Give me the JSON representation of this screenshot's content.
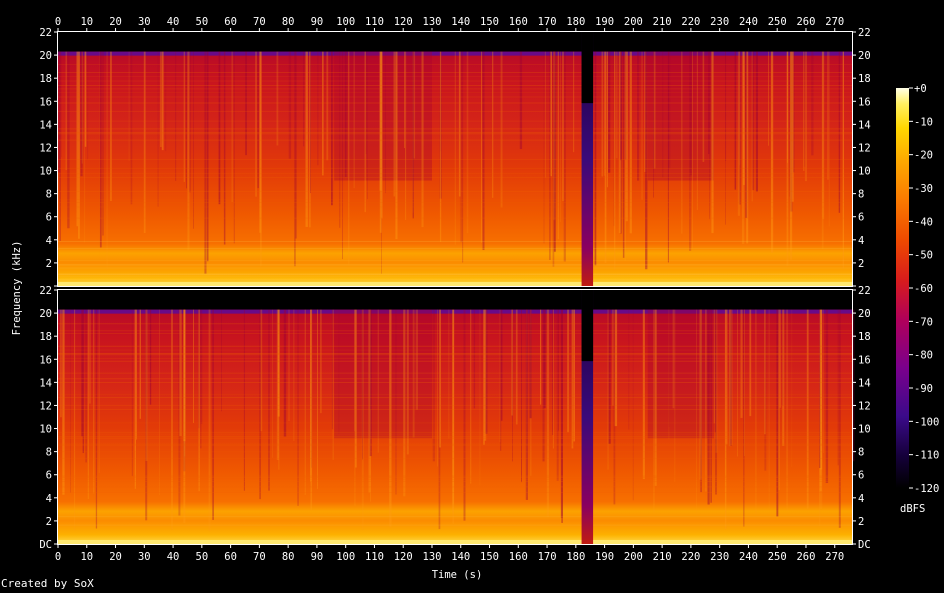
{
  "chart_data": {
    "type": "heatmap",
    "title": "",
    "xlabel": "Time (s)",
    "ylabel": "Frequency (kHz)",
    "xlim": [
      0,
      276
    ],
    "ylim": [
      0,
      22
    ],
    "x_ticks": [
      "0",
      "10",
      "20",
      "30",
      "40",
      "50",
      "60",
      "70",
      "80",
      "90",
      "100",
      "110",
      "120",
      "130",
      "140",
      "150",
      "160",
      "170",
      "180",
      "190",
      "200",
      "210",
      "220",
      "230",
      "240",
      "250",
      "260",
      "270"
    ],
    "y_ticks": [
      "DC",
      "2",
      "4",
      "6",
      "8",
      "10",
      "12",
      "14",
      "16",
      "18",
      "20",
      "22"
    ],
    "channels": [
      {
        "name": "",
        "lowpass_cutoff_khz": 20.3
      },
      {
        "name": "",
        "lowpass_cutoff_khz": 20.3
      }
    ],
    "colorbar": {
      "label": "dBFS",
      "range": [
        -120,
        0
      ],
      "ticks": [
        "+0",
        "-10",
        "-20",
        "-30",
        "-40",
        "-50",
        "-60",
        "-70",
        "-80",
        "-90",
        "-100",
        "-110",
        "-120"
      ],
      "colors": [
        "#000000",
        "#1a0040",
        "#3b0a8a",
        "#7a008c",
        "#b0005a",
        "#d81c1c",
        "#ee4a00",
        "#fa7a00",
        "#fdaa00",
        "#ffd700",
        "#fff060",
        "#ffffe8"
      ]
    },
    "quiet_segments_s": [
      [
        182,
        186
      ]
    ],
    "lower_energy_segments_s": [
      [
        96,
        130
      ],
      [
        205,
        228
      ]
    ]
  },
  "footer": {
    "credit": "Created by SoX"
  }
}
